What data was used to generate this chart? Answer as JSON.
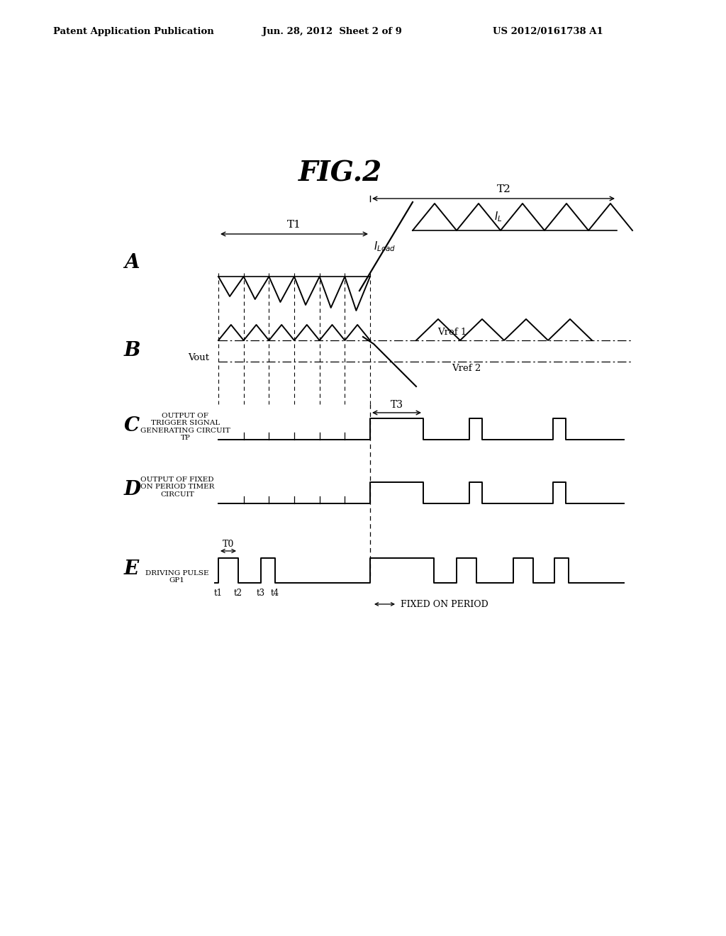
{
  "title": "FIG.2",
  "header_left": "Patent Application Publication",
  "header_center": "Jun. 28, 2012  Sheet 2 of 9",
  "header_right": "US 2012/0161738 A1",
  "background_color": "#ffffff",
  "text_color": "#000000",
  "fig_width": 10.24,
  "fig_height": 13.2,
  "dpi": 100
}
